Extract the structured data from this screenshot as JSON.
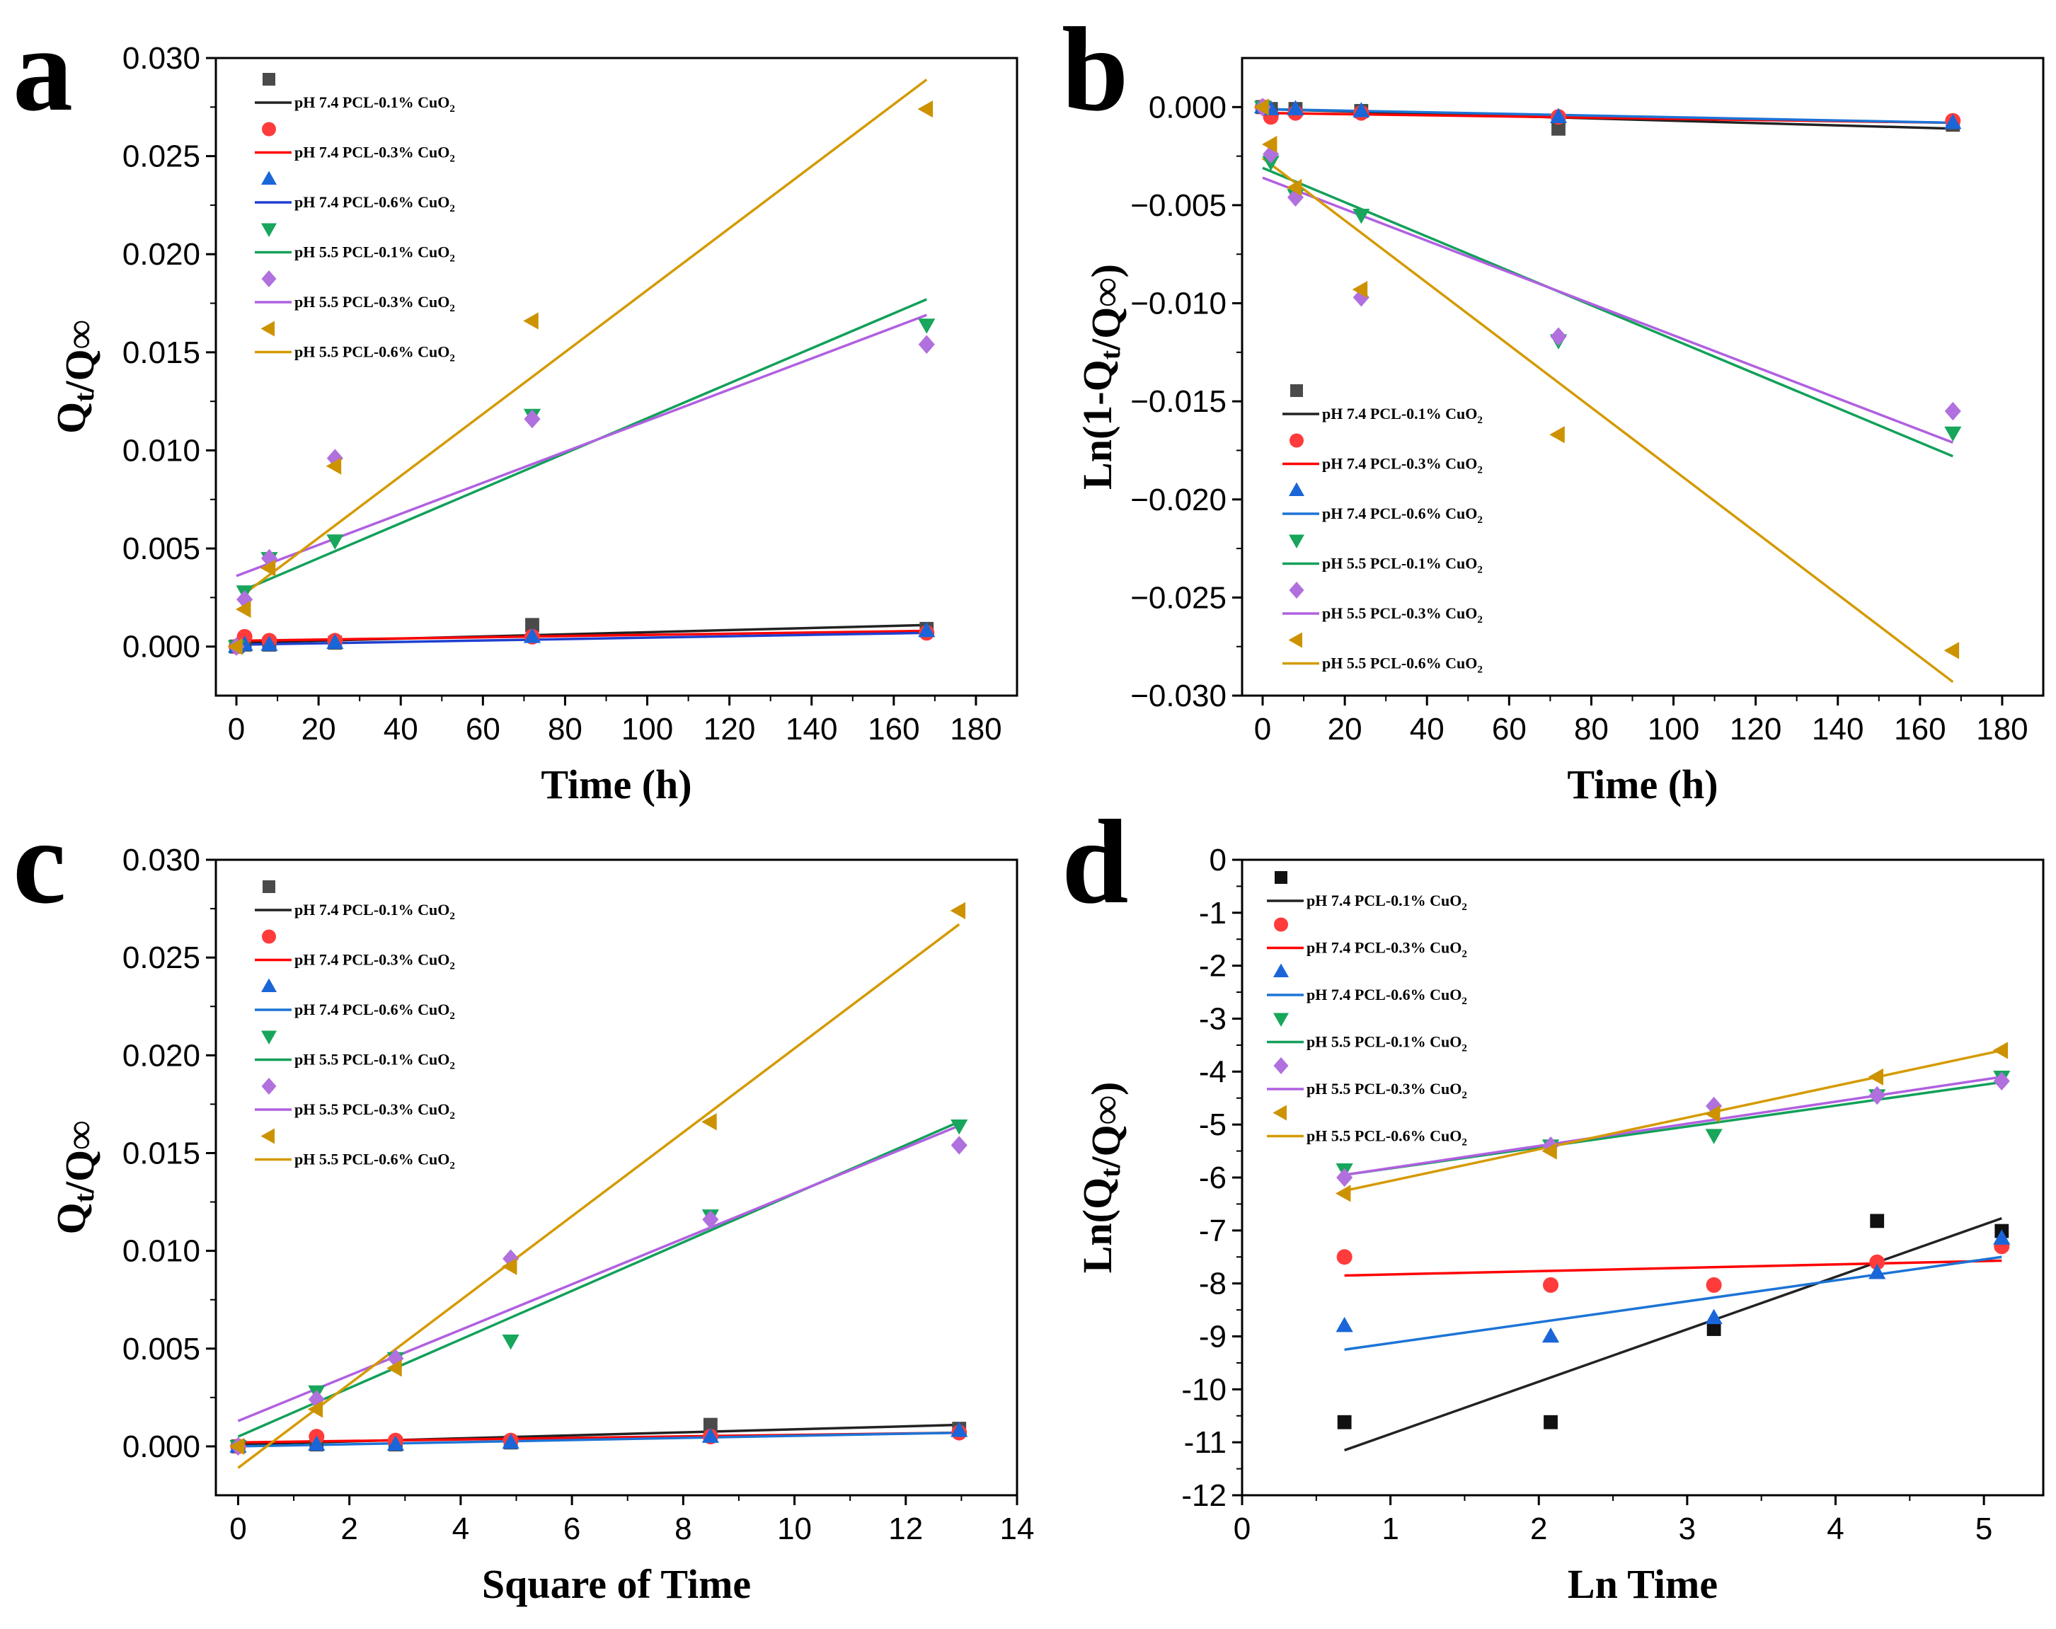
{
  "chart_data": [
    {
      "panel": "a",
      "type": "scatter",
      "xlabel": "Time (h)",
      "ylabel": "Qt/Q∞",
      "xlim": [
        -5,
        190
      ],
      "ylim": [
        -0.0025,
        0.03
      ],
      "xticks": [
        0,
        20,
        40,
        60,
        80,
        100,
        120,
        140,
        160,
        180
      ],
      "xtick_labels": [
        "0",
        "20",
        "40",
        "60",
        "80",
        "100",
        "120",
        "140",
        "160",
        "180"
      ],
      "yticks": [
        0,
        0.005,
        0.01,
        0.015,
        0.02,
        0.025,
        0.03
      ],
      "ytick_labels": [
        "0.000",
        "0.005",
        "0.010",
        "0.015",
        "0.020",
        "0.025",
        "0.030"
      ],
      "legend_position": "top-left",
      "series": [
        {
          "name": "pH 7.4 PCL-0.1% CuO2",
          "marker": "square",
          "color": "#4a4a4a",
          "line_color": "#222222",
          "x": [
            0,
            2,
            8,
            24,
            72,
            168
          ],
          "y": [
            0,
            0.0001,
            0.0001,
            0.0002,
            0.0011,
            0.0009
          ],
          "fit": {
            "x": [
              2,
              168
            ],
            "y": [
              0.0002,
              0.0011
            ]
          }
        },
        {
          "name": "pH 7.4 PCL-0.3% CuO2",
          "marker": "circle",
          "color": "#ff3b3b",
          "line_color": "#ff0000",
          "x": [
            0,
            2,
            8,
            24,
            72,
            168
          ],
          "y": [
            0,
            0.0005,
            0.0003,
            0.0003,
            0.0005,
            0.0007
          ],
          "fit": {
            "x": [
              2,
              168
            ],
            "y": [
              0.0003,
              0.0008
            ]
          }
        },
        {
          "name": "pH 7.4 PCL-0.6% CuO2",
          "marker": "triangle-up",
          "color": "#1a66d9",
          "line_color": "#1f3fd0",
          "x": [
            0,
            2,
            8,
            24,
            72,
            168
          ],
          "y": [
            0,
            0.0001,
            0.0001,
            0.0002,
            0.0005,
            0.0008
          ],
          "fit": {
            "x": [
              2,
              168
            ],
            "y": [
              0.0001,
              0.0007
            ]
          }
        },
        {
          "name": "pH 5.5 PCL-0.1% CuO2",
          "marker": "triangle-down",
          "color": "#17a65b",
          "line_color": "#12a05a",
          "x": [
            0,
            2,
            8,
            24,
            72,
            168
          ],
          "y": [
            0,
            0.0028,
            0.0045,
            0.0054,
            0.0118,
            0.0164
          ],
          "fit": {
            "x": [
              2,
              168
            ],
            "y": [
              0.0029,
              0.0177
            ]
          }
        },
        {
          "name": "pH 5.5 PCL-0.3% CuO2",
          "marker": "diamond",
          "color": "#b070dd",
          "line_color": "#b060e0",
          "x": [
            0,
            2,
            8,
            24,
            72,
            168
          ],
          "y": [
            0,
            0.0024,
            0.0045,
            0.0096,
            0.0116,
            0.0154
          ],
          "fit": {
            "x": [
              0,
              168
            ],
            "y": [
              0.0036,
              0.0169
            ]
          }
        },
        {
          "name": "pH 5.5 PCL-0.6% CuO2",
          "marker": "triangle-left",
          "color": "#cc9200",
          "line_color": "#d49a00",
          "x": [
            0,
            2,
            8,
            24,
            72,
            168
          ],
          "y": [
            0,
            0.0019,
            0.004,
            0.0092,
            0.0166,
            0.0274
          ],
          "fit": {
            "x": [
              2,
              168
            ],
            "y": [
              0.0027,
              0.0289
            ]
          }
        }
      ]
    },
    {
      "panel": "b",
      "type": "scatter",
      "xlabel": "Time (h)",
      "ylabel": "Ln(1-Qt/Q∞)",
      "xlim": [
        -5,
        190
      ],
      "ylim": [
        -0.03,
        0.0025
      ],
      "xticks": [
        0,
        20,
        40,
        60,
        80,
        100,
        120,
        140,
        160,
        180
      ],
      "xtick_labels": [
        "0",
        "20",
        "40",
        "60",
        "80",
        "100",
        "120",
        "140",
        "160",
        "180"
      ],
      "yticks": [
        0,
        -0.005,
        -0.01,
        -0.015,
        -0.02,
        -0.025,
        -0.03
      ],
      "ytick_labels": [
        "0.000",
        "−0.005",
        "−0.010",
        "−0.015",
        "−0.020",
        "−0.025",
        "−0.030"
      ],
      "legend_position": "bottom-left",
      "series": [
        {
          "name": "pH 7.4 PCL-0.1% CuO2",
          "marker": "square",
          "color": "#4a4a4a",
          "line_color": "#222222",
          "x": [
            0,
            2,
            8,
            24,
            72,
            168
          ],
          "y": [
            0,
            -0.0001,
            -0.0001,
            -0.0002,
            -0.0011,
            -0.0009
          ],
          "fit": {
            "x": [
              0,
              168
            ],
            "y": [
              -0.0001,
              -0.0011
            ]
          }
        },
        {
          "name": "pH 7.4 PCL-0.3% CuO2",
          "marker": "circle",
          "color": "#ff3b3b",
          "line_color": "#ff0000",
          "x": [
            0,
            2,
            8,
            24,
            72,
            168
          ],
          "y": [
            0,
            -0.0005,
            -0.0003,
            -0.0003,
            -0.0005,
            -0.0007
          ],
          "fit": {
            "x": [
              0,
              168
            ],
            "y": [
              -0.0003,
              -0.0008
            ]
          }
        },
        {
          "name": "pH 7.4 PCL-0.6% CuO2",
          "marker": "triangle-up",
          "color": "#1a66d9",
          "line_color": "#1c74d6",
          "x": [
            0,
            2,
            8,
            24,
            72,
            168
          ],
          "y": [
            0,
            -0.0001,
            -0.0001,
            -0.0002,
            -0.0005,
            -0.0008
          ],
          "fit": {
            "x": [
              0,
              168
            ],
            "y": [
              -0.0001,
              -0.0008
            ]
          }
        },
        {
          "name": "pH 5.5 PCL-0.1% CuO2",
          "marker": "triangle-down",
          "color": "#17a65b",
          "line_color": "#12a05a",
          "x": [
            0,
            2,
            8,
            24,
            72,
            168
          ],
          "y": [
            0,
            -0.0028,
            -0.0045,
            -0.0055,
            -0.0119,
            -0.0166
          ],
          "fit": {
            "x": [
              0,
              168
            ],
            "y": [
              -0.0031,
              -0.0178
            ]
          }
        },
        {
          "name": "pH 5.5 PCL-0.3% CuO2",
          "marker": "diamond",
          "color": "#b070dd",
          "line_color": "#b060e0",
          "x": [
            0,
            2,
            8,
            24,
            72,
            168
          ],
          "y": [
            0,
            -0.0024,
            -0.0046,
            -0.0097,
            -0.0117,
            -0.0155
          ],
          "fit": {
            "x": [
              0,
              168
            ],
            "y": [
              -0.0036,
              -0.0171
            ]
          }
        },
        {
          "name": "pH 5.5 PCL-0.6% CuO2",
          "marker": "triangle-left",
          "color": "#cc9200",
          "line_color": "#d49a00",
          "x": [
            0,
            2,
            8,
            24,
            72,
            168
          ],
          "y": [
            0,
            -0.0019,
            -0.0041,
            -0.0093,
            -0.0167,
            -0.0277
          ],
          "fit": {
            "x": [
              0,
              168
            ],
            "y": [
              -0.0026,
              -0.0293
            ]
          }
        }
      ]
    },
    {
      "panel": "c",
      "type": "scatter",
      "xlabel": "Square of Time",
      "ylabel": "Qt/Q∞",
      "xlim": [
        -0.4,
        14
      ],
      "ylim": [
        -0.0025,
        0.03
      ],
      "xticks": [
        0,
        2,
        4,
        6,
        8,
        10,
        12,
        14
      ],
      "xtick_labels": [
        "0",
        "2",
        "4",
        "6",
        "8",
        "10",
        "12",
        "14"
      ],
      "yticks": [
        0,
        0.005,
        0.01,
        0.015,
        0.02,
        0.025,
        0.03
      ],
      "ytick_labels": [
        "0.000",
        "0.005",
        "0.010",
        "0.015",
        "0.020",
        "0.025",
        "0.030"
      ],
      "legend_position": "top-left",
      "series": [
        {
          "name": "pH 7.4 PCL-0.1% CuO2",
          "marker": "square",
          "color": "#4a4a4a",
          "line_color": "#222222",
          "x": [
            0,
            1.41,
            2.83,
            4.9,
            8.49,
            12.96
          ],
          "y": [
            0,
            0.0001,
            0.0001,
            0.0002,
            0.0011,
            0.0009
          ],
          "fit": {
            "x": [
              0,
              12.96
            ],
            "y": [
              0.0001,
              0.0011
            ]
          }
        },
        {
          "name": "pH 7.4 PCL-0.3% CuO2",
          "marker": "circle",
          "color": "#ff3b3b",
          "line_color": "#ff0000",
          "x": [
            0,
            1.41,
            2.83,
            4.9,
            8.49,
            12.96
          ],
          "y": [
            0,
            0.0005,
            0.0003,
            0.0003,
            0.0005,
            0.0007
          ],
          "fit": {
            "x": [
              0,
              12.96
            ],
            "y": [
              0.0002,
              0.0007
            ]
          }
        },
        {
          "name": "pH 7.4 PCL-0.6% CuO2",
          "marker": "triangle-up",
          "color": "#1a66d9",
          "line_color": "#1c74d6",
          "x": [
            0,
            1.41,
            2.83,
            4.9,
            8.49,
            12.96
          ],
          "y": [
            0,
            0.0001,
            0.0001,
            0.0002,
            0.0005,
            0.0008
          ],
          "fit": {
            "x": [
              0,
              12.96
            ],
            "y": [
              0.0,
              0.0007
            ]
          }
        },
        {
          "name": "pH 5.5 PCL-0.1% CuO2",
          "marker": "triangle-down",
          "color": "#17a65b",
          "line_color": "#12a05a",
          "x": [
            0,
            1.41,
            2.83,
            4.9,
            8.49,
            12.96
          ],
          "y": [
            0,
            0.0028,
            0.0045,
            0.0054,
            0.0118,
            0.0164
          ],
          "fit": {
            "x": [
              0,
              12.96
            ],
            "y": [
              0.0005,
              0.0166
            ]
          }
        },
        {
          "name": "pH 5.5 PCL-0.3% CuO2",
          "marker": "diamond",
          "color": "#b070dd",
          "line_color": "#b060e0",
          "x": [
            0,
            1.41,
            2.83,
            4.9,
            8.49,
            12.96
          ],
          "y": [
            0,
            0.0024,
            0.0045,
            0.0096,
            0.0116,
            0.0154
          ],
          "fit": {
            "x": [
              0,
              12.96
            ],
            "y": [
              0.0013,
              0.0164
            ]
          }
        },
        {
          "name": "pH 5.5 PCL-0.6% CuO2",
          "marker": "triangle-left",
          "color": "#cc9200",
          "line_color": "#d49a00",
          "x": [
            0,
            1.41,
            2.83,
            4.9,
            8.49,
            12.96
          ],
          "y": [
            0,
            0.0019,
            0.004,
            0.0092,
            0.0166,
            0.0274
          ],
          "fit": {
            "x": [
              0,
              12.96
            ],
            "y": [
              -0.0011,
              0.0267
            ]
          }
        }
      ]
    },
    {
      "panel": "d",
      "type": "scatter",
      "xlabel": "Ln Time",
      "ylabel": "Ln(Qt/Q∞)",
      "xlim": [
        0,
        5.4
      ],
      "ylim": [
        -12,
        0
      ],
      "xticks": [
        0,
        1,
        2,
        3,
        4,
        5
      ],
      "xtick_labels": [
        "0",
        "1",
        "2",
        "3",
        "4",
        "5"
      ],
      "yticks": [
        0,
        -1,
        -2,
        -3,
        -4,
        -5,
        -6,
        -7,
        -8,
        -9,
        -10,
        -11,
        -12
      ],
      "ytick_labels": [
        "0",
        "-1",
        "-2",
        "-3",
        "-4",
        "-5",
        "-6",
        "-7",
        "-8",
        "-9",
        "-10",
        "-11",
        "-12"
      ],
      "legend_position": "top-left",
      "series": [
        {
          "name": "pH 7.4 PCL-0.1% CuO2",
          "marker": "square",
          "color": "#111111",
          "line_color": "#222222",
          "x": [
            0.69,
            2.08,
            3.18,
            4.28,
            5.12
          ],
          "y": [
            -10.62,
            -10.62,
            -8.86,
            -6.82,
            -7.01
          ],
          "fit": {
            "x": [
              0.69,
              5.12
            ],
            "y": [
              -11.15,
              -6.77
            ]
          }
        },
        {
          "name": "pH 7.4 PCL-0.3% CuO2",
          "marker": "circle",
          "color": "#ff3b3b",
          "line_color": "#ff0000",
          "x": [
            0.69,
            2.08,
            3.18,
            4.28,
            5.12
          ],
          "y": [
            -7.5,
            -8.03,
            -8.03,
            -7.6,
            -7.3
          ],
          "fit": {
            "x": [
              0.69,
              5.12
            ],
            "y": [
              -7.85,
              -7.57
            ]
          }
        },
        {
          "name": "pH 7.4 PCL-0.6% CuO2",
          "marker": "triangle-up",
          "color": "#1a66d9",
          "line_color": "#1c74d6",
          "x": [
            0.69,
            2.08,
            3.18,
            4.28,
            5.12
          ],
          "y": [
            -8.8,
            -9.0,
            -8.65,
            -7.8,
            -7.15
          ],
          "fit": {
            "x": [
              0.69,
              5.12
            ],
            "y": [
              -9.25,
              -7.5
            ]
          }
        },
        {
          "name": "pH 5.5 PCL-0.1% CuO2",
          "marker": "triangle-down",
          "color": "#17a65b",
          "line_color": "#12a05a",
          "x": [
            0.69,
            2.08,
            3.18,
            4.28,
            5.12
          ],
          "y": [
            -5.85,
            -5.4,
            -5.2,
            -4.45,
            -4.1
          ],
          "fit": {
            "x": [
              0.69,
              5.12
            ],
            "y": [
              -5.95,
              -4.2
            ]
          }
        },
        {
          "name": "pH 5.5 PCL-0.3% CuO2",
          "marker": "diamond",
          "color": "#b070dd",
          "line_color": "#b060e0",
          "x": [
            0.69,
            2.08,
            3.18,
            4.28,
            5.12
          ],
          "y": [
            -6.0,
            -5.4,
            -4.65,
            -4.45,
            -4.18
          ],
          "fit": {
            "x": [
              0.69,
              5.12
            ],
            "y": [
              -5.95,
              -4.1
            ]
          }
        },
        {
          "name": "pH 5.5 PCL-0.6% CuO2",
          "marker": "triangle-left",
          "color": "#cc9200",
          "line_color": "#d49a00",
          "x": [
            0.69,
            2.08,
            3.18,
            4.28,
            5.12
          ],
          "y": [
            -6.3,
            -5.5,
            -4.8,
            -4.1,
            -3.6
          ],
          "fit": {
            "x": [
              0.69,
              5.12
            ],
            "y": [
              -6.25,
              -3.6
            ]
          }
        }
      ]
    }
  ]
}
